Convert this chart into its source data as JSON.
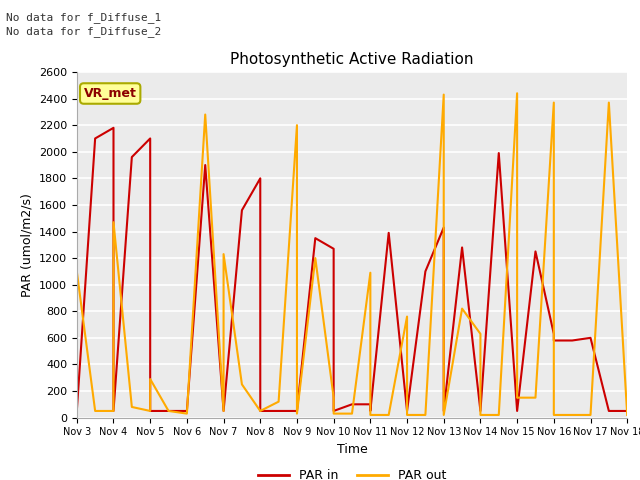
{
  "title": "Photosynthetic Active Radiation",
  "xlabel": "Time",
  "ylabel": "PAR (umol/m2/s)",
  "text_line1": "No data for f_Diffuse_1",
  "text_line2": "No data for f_Diffuse_2",
  "legend_box_label": "VR_met",
  "legend_label1": "PAR in",
  "legend_label2": "PAR out",
  "ylim": [
    0,
    2600
  ],
  "yticks": [
    0,
    200,
    400,
    600,
    800,
    1000,
    1200,
    1400,
    1600,
    1800,
    2000,
    2200,
    2400,
    2600
  ],
  "xtick_labels": [
    "Nov 3",
    "Nov 4",
    "Nov 5",
    "Nov 6",
    "Nov 7",
    "Nov 8",
    "Nov 9",
    "Nov 10",
    "Nov 11",
    "Nov 12",
    "Nov 13",
    "Nov 14",
    "Nov 15",
    "Nov 16",
    "Nov 17",
    "Nov 18"
  ],
  "color_par_in": "#cc0000",
  "color_par_out": "#ffaa00",
  "background_color": "#ebebeb",
  "grid_color": "#ffffff",
  "legend_box_facecolor": "#ffff99",
  "legend_box_edgecolor": "#aaaa00",
  "par_in_x": [
    3.0,
    3.5,
    4.0,
    4.0,
    4.5,
    5.0,
    5.0,
    5.5,
    6.0,
    6.0,
    6.5,
    7.0,
    7.0,
    7.5,
    8.0,
    8.0,
    8.5,
    9.0,
    9.0,
    9.5,
    10.0,
    10.0,
    10.5,
    11.0,
    11.0,
    11.5,
    12.0,
    12.0,
    12.5,
    13.0,
    13.0,
    13.5,
    14.0,
    14.0,
    14.5,
    15.0,
    15.0,
    15.5,
    16.0,
    16.0,
    16.5,
    17.0,
    17.0,
    17.5,
    18.0
  ],
  "par_in_y": [
    50,
    2100,
    2180,
    50,
    1960,
    2100,
    50,
    50,
    50,
    50,
    1900,
    50,
    50,
    1560,
    1800,
    50,
    50,
    50,
    50,
    1350,
    1270,
    50,
    100,
    100,
    50,
    1390,
    50,
    50,
    1100,
    1430,
    50,
    1280,
    50,
    50,
    1990,
    50,
    50,
    1250,
    630,
    580,
    580,
    600,
    600,
    50,
    50
  ],
  "par_out_x": [
    3.0,
    3.5,
    4.0,
    4.0,
    4.5,
    5.0,
    5.0,
    5.5,
    6.0,
    6.0,
    6.5,
    7.0,
    7.0,
    7.5,
    8.0,
    8.0,
    8.5,
    9.0,
    9.0,
    9.5,
    10.0,
    10.0,
    10.5,
    11.0,
    11.0,
    11.5,
    12.0,
    12.0,
    12.5,
    13.0,
    13.0,
    13.5,
    14.0,
    14.0,
    14.5,
    15.0,
    15.0,
    15.5,
    16.0,
    16.0,
    16.5,
    17.0,
    17.0,
    17.5,
    18.0
  ],
  "par_out_y": [
    1100,
    50,
    50,
    1470,
    80,
    50,
    290,
    50,
    30,
    30,
    2280,
    50,
    1230,
    250,
    50,
    50,
    120,
    2200,
    30,
    1200,
    150,
    30,
    30,
    1090,
    20,
    20,
    760,
    20,
    20,
    2430,
    20,
    820,
    630,
    20,
    20,
    2440,
    150,
    150,
    2370,
    20,
    20,
    20,
    20,
    2370,
    20
  ]
}
